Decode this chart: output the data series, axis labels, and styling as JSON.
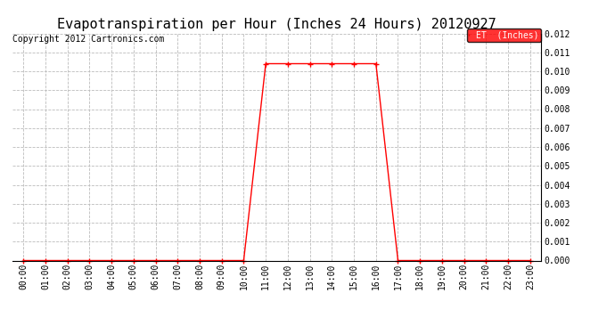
{
  "title": "Evapotranspiration per Hour (Inches 24 Hours) 20120927",
  "copyright": "Copyright 2012 Cartronics.com",
  "legend_label": "ET  (Inches)",
  "legend_bg": "#ff0000",
  "legend_text_color": "#ffffff",
  "line_color": "#ff0000",
  "marker": "+",
  "marker_size": 4,
  "marker_ew": 1.0,
  "x_labels": [
    "00:00",
    "01:00",
    "02:00",
    "03:00",
    "04:00",
    "05:00",
    "06:00",
    "07:00",
    "08:00",
    "09:00",
    "10:00",
    "11:00",
    "12:00",
    "13:00",
    "14:00",
    "15:00",
    "16:00",
    "17:00",
    "18:00",
    "19:00",
    "20:00",
    "21:00",
    "22:00",
    "23:00"
  ],
  "y_data": [
    0.0,
    0.0,
    0.0,
    0.0,
    0.0,
    0.0,
    0.0,
    0.0,
    0.0,
    0.0,
    0.0,
    0.0104,
    0.0104,
    0.0104,
    0.0104,
    0.0104,
    0.0104,
    0.0,
    0.0,
    0.0,
    0.0,
    0.0,
    0.0,
    0.0
  ],
  "ylim": [
    0.0,
    0.012
  ],
  "yticks": [
    0.0,
    0.001,
    0.002,
    0.003,
    0.004,
    0.005,
    0.006,
    0.007,
    0.008,
    0.009,
    0.01,
    0.011,
    0.012
  ],
  "bg_color": "#ffffff",
  "grid_color": "#bbbbbb",
  "title_fontsize": 11,
  "copyright_fontsize": 7,
  "tick_fontsize": 7,
  "legend_fontsize": 7,
  "linewidth": 1.0
}
